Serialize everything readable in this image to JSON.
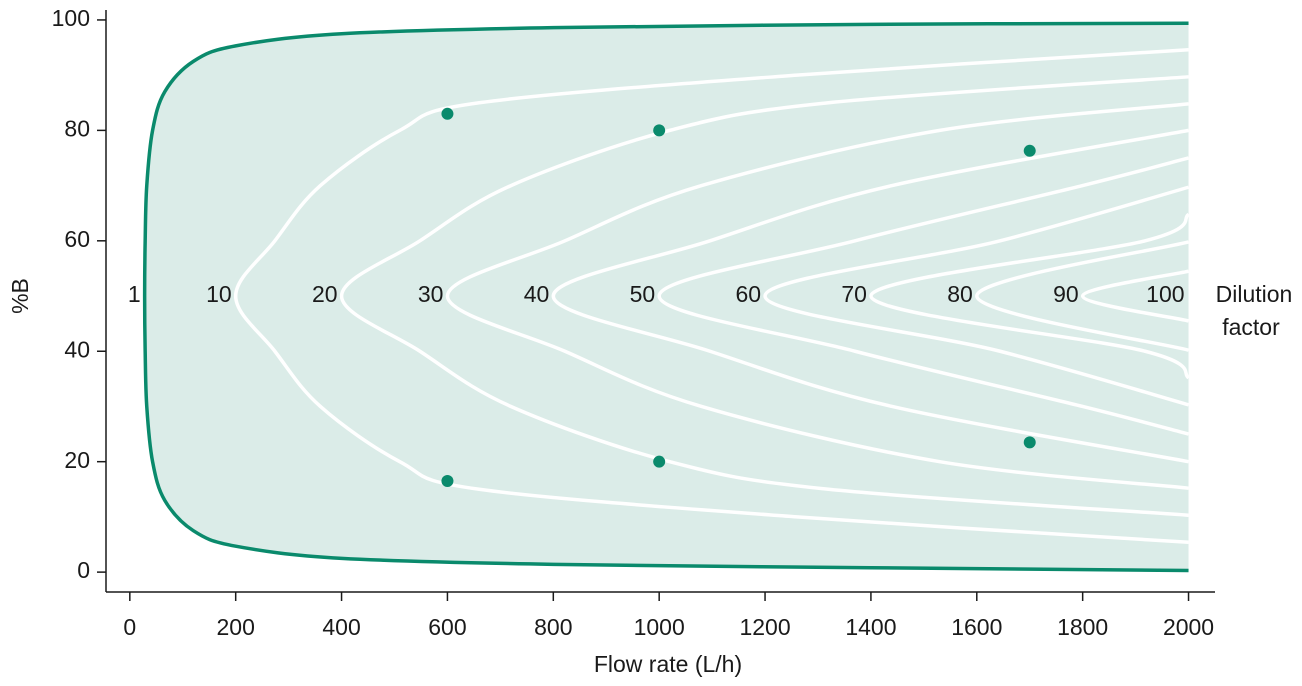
{
  "chart_data": {
    "type": "line",
    "xlabel": "Flow rate (L/h)",
    "ylabel": "%B",
    "xlim": [
      -45,
      2050
    ],
    "ylim": [
      -3.6,
      101.8
    ],
    "xticks": [
      0,
      200,
      400,
      600,
      800,
      1000,
      1200,
      1400,
      1600,
      1800,
      2000
    ],
    "yticks": [
      0,
      20,
      40,
      60,
      80,
      100
    ],
    "series": [
      {
        "color": "#0a8a6c",
        "fill": "#dbece8",
        "x": [
          2000,
          1400,
          800,
          400,
          200,
          120,
          66,
          43,
          32,
          29,
          28,
          29,
          32,
          43,
          66,
          120,
          200,
          400,
          800,
          1400,
          2000
        ],
        "y": [
          0.3,
          0.8,
          1.4,
          2.5,
          4.7,
          7.5,
          13,
          20,
          30,
          40,
          50,
          60,
          70,
          80,
          87,
          92.5,
          95.3,
          97.5,
          98.6,
          99.2,
          99.4
        ]
      },
      {
        "color": "#ffffff",
        "x": [
          2000,
          1260,
          660,
          510,
          360,
          274,
          200,
          274,
          360,
          510,
          660,
          1260,
          2000
        ],
        "y": [
          5.4,
          10,
          15,
          20,
          30,
          40,
          50,
          60,
          70,
          80,
          85,
          90,
          94.6
        ]
      },
      {
        "color": "#ffffff",
        "x": [
          2000,
          1320,
          1020,
          720,
          548,
          400,
          548,
          720,
          1020,
          1320,
          2000
        ],
        "y": [
          10.3,
          15,
          20,
          30,
          40,
          50,
          60,
          70,
          80,
          85,
          89.7
        ]
      },
      {
        "color": "#ffffff",
        "x": [
          2000,
          1530,
          1080,
          822,
          600,
          822,
          1080,
          1530,
          2000
        ],
        "y": [
          15.2,
          20,
          30,
          40,
          50,
          60,
          70,
          80,
          84.8
        ]
      },
      {
        "color": "#ffffff",
        "x": [
          2000,
          1440,
          1096,
          800,
          1096,
          1440,
          2000
        ],
        "y": [
          20,
          30,
          40,
          50,
          60,
          70,
          80
        ]
      },
      {
        "color": "#ffffff",
        "x": [
          2000,
          1800,
          1370,
          1000,
          1370,
          1800,
          2000
        ],
        "y": [
          25,
          30,
          40,
          50,
          60,
          70,
          75
        ]
      },
      {
        "color": "#ffffff",
        "x": [
          2000,
          1644,
          1200,
          1644,
          2000
        ],
        "y": [
          30.3,
          40,
          50,
          60,
          69.7
        ]
      },
      {
        "color": "#ffffff",
        "x": [
          2000,
          1918,
          1400,
          1918,
          2000
        ],
        "y": [
          35.2,
          40,
          50,
          60,
          64.8
        ]
      },
      {
        "color": "#ffffff",
        "x": [
          2000,
          1600,
          2000
        ],
        "y": [
          40.2,
          50,
          59.8
        ]
      },
      {
        "color": "#ffffff",
        "x": [
          2000,
          1800,
          2000
        ],
        "y": [
          45.5,
          50,
          54.5
        ]
      }
    ],
    "points": {
      "color": "#0a8a6c",
      "x": [
        600,
        600,
        1000,
        1000,
        1700,
        1700
      ],
      "y": [
        83,
        16.5,
        80,
        20,
        76.3,
        23.5
      ]
    },
    "contour_labels": [
      {
        "text": "1",
        "x": 28
      },
      {
        "text": "10",
        "x": 200
      },
      {
        "text": "20",
        "x": 400
      },
      {
        "text": "30",
        "x": 600
      },
      {
        "text": "40",
        "x": 800
      },
      {
        "text": "50",
        "x": 1000
      },
      {
        "text": "60",
        "x": 1200
      },
      {
        "text": "70",
        "x": 1400
      },
      {
        "text": "80",
        "x": 1600
      },
      {
        "text": "90",
        "x": 1800
      },
      {
        "text": "100",
        "x": 2000
      }
    ],
    "contour_label_y": 50,
    "annotation": [
      "Dilution",
      "factor"
    ]
  }
}
